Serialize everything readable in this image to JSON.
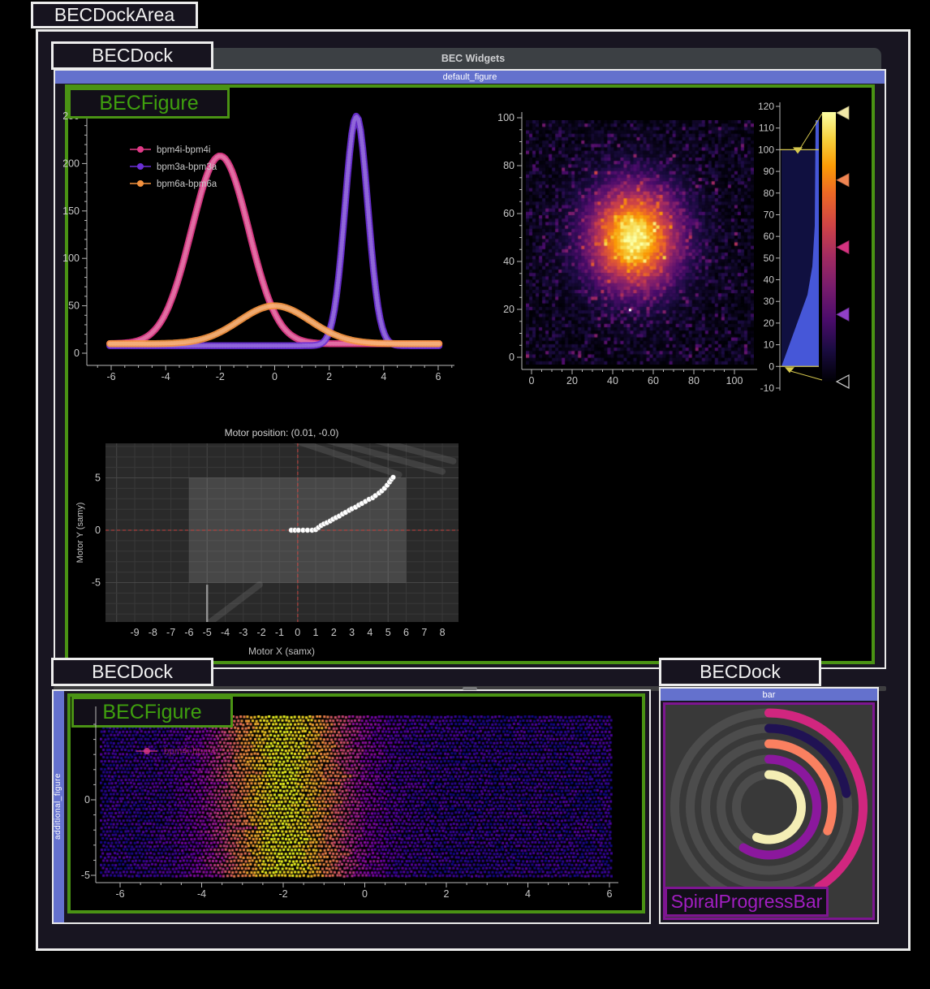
{
  "window": {
    "area_label": "BECDockArea",
    "title": "BEC Widgets"
  },
  "docks": {
    "dock1": {
      "label": "BECDock",
      "titlebar": "default_figure",
      "figure_label": "BECFigure"
    },
    "dock2": {
      "label": "BECDock",
      "titlebar": "additional_figure",
      "figure_label": "BECFigure"
    },
    "dock3": {
      "label": "BECDock",
      "titlebar": "bar",
      "widget_label": "SpiralProgressBar"
    }
  },
  "palette": {
    "accent_blue": "#6471cd",
    "accent_green": "#4a9314",
    "accent_purple": "#7d1591",
    "window_bg": "#181521",
    "figure_bg": "#000000",
    "axis_text": "#c8c8c8",
    "white_border": "#ececec",
    "tab_gray": "#3c4044",
    "crosshair_red": "#d5403c"
  },
  "chart_data": {
    "waveform": {
      "type": "line",
      "xlim": [
        -6.9,
        6.8
      ],
      "ylim": [
        -10,
        258
      ],
      "x_ticks": [
        -6,
        -4,
        -2,
        0,
        2,
        4,
        6
      ],
      "y_ticks": [
        0,
        50,
        100,
        150,
        200,
        250
      ],
      "legend_position": "top-left",
      "series": [
        {
          "name": "bpm4i-bpm4i",
          "color": "#e23a88",
          "curve": "gaussian",
          "center": -2,
          "sigma": 1.05,
          "amplitude": 198,
          "baseline": 10
        },
        {
          "name": "bpm3a-bpm3a",
          "color": "#6b2fd6",
          "curve": "gaussian",
          "center": 3,
          "sigma": 0.42,
          "amplitude": 242,
          "baseline": 8
        },
        {
          "name": "bpm6a-bpm6a",
          "color": "#f5923e",
          "curve": "gaussian",
          "center": 0,
          "sigma": 1.3,
          "amplitude": 40,
          "baseline": 10
        }
      ]
    },
    "heatmap": {
      "type": "heatmap",
      "colormap": "inferno",
      "x_ticks": [
        0,
        20,
        40,
        60,
        80,
        100
      ],
      "y_ticks": [
        0,
        20,
        40,
        60,
        80,
        100
      ],
      "peak": {
        "x": 50,
        "y": 52,
        "sigma": 15,
        "amplitude": 108
      },
      "noise_scale": 7,
      "marker": {
        "x": 48,
        "y": 21,
        "color": "#ffffff"
      },
      "grid": [
        70,
        72
      ]
    },
    "colorbar": {
      "type": "histogram-lut",
      "colormap": "inferno",
      "ticks": [
        120,
        110,
        100,
        90,
        80,
        70,
        60,
        50,
        40,
        30,
        20,
        10,
        0,
        -10
      ],
      "levels": [
        0,
        100
      ],
      "markers": [
        {
          "value": 117,
          "color": "#f2e9a8"
        },
        {
          "value": 86,
          "color": "#f08552"
        },
        {
          "value": 55,
          "color": "#d53380"
        },
        {
          "value": 24,
          "color": "#9040c8"
        },
        {
          "value": -7,
          "color": "none"
        }
      ],
      "histogram_color": "#4a5ce0",
      "region_color": "#101040",
      "level_line_color": "#d6c84e"
    },
    "motor_map": {
      "type": "scatter",
      "title": "Motor position: (0.01, -0.0)",
      "xlabel": "Motor X (samx)",
      "ylabel": "Motor Y (samy)",
      "x_ticks": [
        -9,
        -8,
        -7,
        -6,
        -5,
        -4,
        -3,
        -2,
        -1,
        0,
        1,
        2,
        3,
        4,
        5,
        6,
        7,
        8
      ],
      "y_ticks": [
        -5,
        0,
        5
      ],
      "limits_rect": {
        "x": [
          -6,
          6
        ],
        "y": [
          -5,
          5
        ]
      },
      "crosshair": {
        "x": 0.01,
        "y": 0
      },
      "point_color": "#ffffff",
      "points": [
        [
          -0.35,
          0
        ],
        [
          -0.15,
          0
        ],
        [
          0.05,
          0
        ],
        [
          0.3,
          0
        ],
        [
          0.55,
          0
        ],
        [
          0.8,
          0
        ],
        [
          1.0,
          0.05
        ],
        [
          1.15,
          0.25
        ],
        [
          1.3,
          0.45
        ],
        [
          1.45,
          0.6
        ],
        [
          1.62,
          0.72
        ],
        [
          1.8,
          0.88
        ],
        [
          1.95,
          1.05
        ],
        [
          2.12,
          1.2
        ],
        [
          2.3,
          1.35
        ],
        [
          2.48,
          1.55
        ],
        [
          2.65,
          1.7
        ],
        [
          2.85,
          1.9
        ],
        [
          3.0,
          2.05
        ],
        [
          3.2,
          2.2
        ],
        [
          3.38,
          2.4
        ],
        [
          3.55,
          2.55
        ],
        [
          3.75,
          2.75
        ],
        [
          3.95,
          2.95
        ],
        [
          4.15,
          3.1
        ],
        [
          4.3,
          3.3
        ],
        [
          4.5,
          3.55
        ],
        [
          4.65,
          3.75
        ],
        [
          4.8,
          4.0
        ],
        [
          4.95,
          4.3
        ],
        [
          5.08,
          4.6
        ],
        [
          5.18,
          4.85
        ],
        [
          5.28,
          5.05
        ]
      ],
      "trails": [
        [
          -0.2,
          8.6,
          5.6,
          5.3
        ],
        [
          1.6,
          8.6,
          8.0,
          5.6
        ],
        [
          4.3,
          8.6,
          8.6,
          6.6
        ],
        [
          -4.85,
          -8.8,
          -2.1,
          -5.2
        ]
      ],
      "limit_line": {
        "x": -5,
        "y": [
          -5.2,
          -8.8
        ]
      }
    },
    "scan_scatter": {
      "type": "scatter-dense",
      "colormap": "plasma",
      "x_ticks": [
        -6,
        -4,
        -2,
        0,
        2,
        4,
        6
      ],
      "y_ticks": [
        0,
        -5
      ],
      "band": {
        "center": -2,
        "sigma": 1.15
      },
      "y_extent": [
        -5.05,
        5.45
      ],
      "legend": [
        {
          "name": "bpm4i-bpm4i",
          "color": "#e23a88"
        }
      ]
    },
    "spiral": {
      "type": "ring-progress",
      "start_angle_deg": -90,
      "direction": "cw",
      "track_color": "#4c4c4c",
      "background": "#3a3a3a",
      "rings": [
        {
          "color": "#d1267f",
          "sweep_deg": 148
        },
        {
          "color": "#201253",
          "sweep_deg": 80
        },
        {
          "color": "#fa8060",
          "sweep_deg": 112
        },
        {
          "color": "#8b189d",
          "sweep_deg": 212
        },
        {
          "color": "#f4eeb5",
          "sweep_deg": 202
        }
      ]
    }
  }
}
